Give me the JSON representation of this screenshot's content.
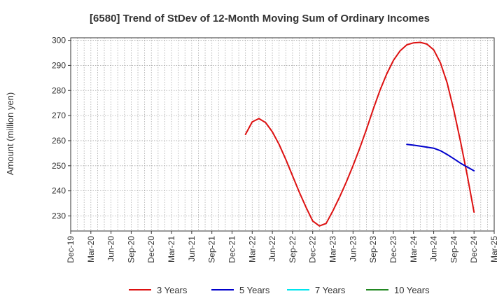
{
  "chart_data": {
    "type": "line",
    "title": "[6580]  Trend of StDev of 12-Month Moving Sum of Ordinary Incomes",
    "ylabel": "Amount (million yen)",
    "xlabel": "",
    "ylim": [
      224,
      301
    ],
    "y_ticks": [
      230,
      240,
      250,
      260,
      270,
      280,
      290,
      300
    ],
    "x_ticks": [
      "Dec-19",
      "Mar-20",
      "Jun-20",
      "Sep-20",
      "Dec-20",
      "Mar-21",
      "Jun-21",
      "Sep-21",
      "Dec-21",
      "Mar-22",
      "Jun-22",
      "Sep-22",
      "Dec-22",
      "Mar-23",
      "Jun-23",
      "Sep-23",
      "Dec-23",
      "Mar-24",
      "Jun-24",
      "Sep-24",
      "Dec-24",
      "Mar-25"
    ],
    "grid": true,
    "legend_position": "bottom",
    "series": [
      {
        "name": "3 Years",
        "color": "#dd1111",
        "points": [
          [
            "Feb-22",
            262.5
          ],
          [
            "Mar-22",
            267.5
          ],
          [
            "Apr-22",
            268.8
          ],
          [
            "May-22",
            267.2
          ],
          [
            "Jun-22",
            263.5
          ],
          [
            "Jul-22",
            258.5
          ],
          [
            "Aug-22",
            252.5
          ],
          [
            "Sep-22",
            246.0
          ],
          [
            "Oct-22",
            239.5
          ],
          [
            "Nov-22",
            233.5
          ],
          [
            "Dec-22",
            228.0
          ],
          [
            "Jan-23",
            226.0
          ],
          [
            "Feb-23",
            227.0
          ],
          [
            "Mar-23",
            232.0
          ],
          [
            "Apr-23",
            237.5
          ],
          [
            "May-23",
            243.5
          ],
          [
            "Jun-23",
            250.0
          ],
          [
            "Jul-23",
            257.0
          ],
          [
            "Aug-23",
            264.5
          ],
          [
            "Sep-23",
            272.5
          ],
          [
            "Oct-23",
            280.0
          ],
          [
            "Nov-23",
            286.5
          ],
          [
            "Dec-23",
            292.0
          ],
          [
            "Jan-24",
            295.8
          ],
          [
            "Feb-24",
            298.2
          ],
          [
            "Mar-24",
            299.0
          ],
          [
            "Apr-24",
            299.2
          ],
          [
            "May-24",
            298.5
          ],
          [
            "Jun-24",
            296.2
          ],
          [
            "Jul-24",
            291.0
          ],
          [
            "Aug-24",
            283.0
          ],
          [
            "Sep-24",
            272.0
          ],
          [
            "Oct-24",
            259.5
          ],
          [
            "Nov-24",
            246.0
          ],
          [
            "Dec-24",
            231.5
          ]
        ]
      },
      {
        "name": "5 Years",
        "color": "#0000cc",
        "points": [
          [
            "Feb-24",
            258.5
          ],
          [
            "Mar-24",
            258.2
          ],
          [
            "Apr-24",
            257.8
          ],
          [
            "May-24",
            257.4
          ],
          [
            "Jun-24",
            257.0
          ],
          [
            "Jul-24",
            256.0
          ],
          [
            "Aug-24",
            254.5
          ],
          [
            "Sep-24",
            252.8
          ],
          [
            "Oct-24",
            251.0
          ],
          [
            "Nov-24",
            249.5
          ],
          [
            "Dec-24",
            248.0
          ]
        ]
      },
      {
        "name": "7 Years",
        "color": "#00e5ee",
        "points": []
      },
      {
        "name": "10 Years",
        "color": "#228822",
        "points": []
      }
    ]
  }
}
